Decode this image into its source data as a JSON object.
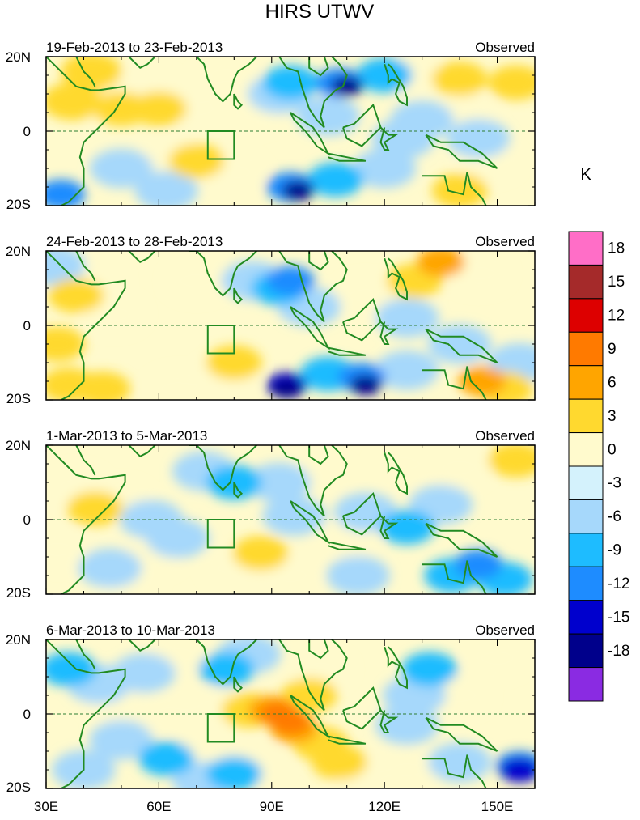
{
  "chart_data": {
    "type": "heatmap",
    "title": "HIRS UTWV",
    "colorbar": {
      "unit": "K",
      "levels": [
        18,
        15,
        12,
        9,
        6,
        3,
        0,
        -3,
        -6,
        -9,
        -12,
        -15,
        -18
      ],
      "colors": [
        "#ff6ec7",
        "#a52a2a",
        "#dd0000",
        "#ff7a00",
        "#ffa500",
        "#ffd92f",
        "#fffacd",
        "#d4f2fc",
        "#a6d8fb",
        "#1ebcff",
        "#1e8cff",
        "#0000cd",
        "#00008b",
        "#8a2be2"
      ]
    },
    "x_axis": {
      "range": [
        30,
        160
      ],
      "tick_values": [
        30,
        60,
        90,
        120,
        150
      ],
      "tick_labels": [
        "30E",
        "60E",
        "90E",
        "120E",
        "150E"
      ]
    },
    "y_axis": {
      "range": [
        -20,
        20
      ],
      "tick_values": [
        20,
        0,
        -20
      ],
      "tick_labels": [
        "20N",
        "0",
        "20S"
      ]
    },
    "box_region": {
      "lon": [
        73,
        80
      ],
      "lat": [
        -7.5,
        0
      ]
    },
    "panels": [
      {
        "period": "19-Feb-2013 to 23-Feb-2013",
        "label": "Observed",
        "features": [
          {
            "lon": 37,
            "lat": 8,
            "value": 4
          },
          {
            "lon": 42,
            "lat": 16,
            "value": 4
          },
          {
            "lon": 44,
            "lat": 8,
            "value": 3
          },
          {
            "lon": 50,
            "lat": 6,
            "value": 6
          },
          {
            "lon": 60,
            "lat": 6,
            "value": 6
          },
          {
            "lon": 57,
            "lat": 12,
            "value": 3
          },
          {
            "lon": 70,
            "lat": 6,
            "value": 3
          },
          {
            "lon": 78,
            "lat": 15,
            "value": 3
          },
          {
            "lon": 85,
            "lat": 5,
            "value": 3
          },
          {
            "lon": 70,
            "lat": -8,
            "value": 6
          },
          {
            "lon": 64,
            "lat": -6,
            "value": 3
          },
          {
            "lon": 80,
            "lat": -11,
            "value": 3
          },
          {
            "lon": 140,
            "lat": 14,
            "value": 6
          },
          {
            "lon": 155,
            "lat": 13,
            "value": 6
          },
          {
            "lon": 128,
            "lat": 15,
            "value": 3
          },
          {
            "lon": 142,
            "lat": 5,
            "value": 3
          },
          {
            "lon": 140,
            "lat": -16,
            "value": 6
          },
          {
            "lon": 148,
            "lat": -8,
            "value": 3
          },
          {
            "lon": 95,
            "lat": 13,
            "value": -6
          },
          {
            "lon": 108,
            "lat": 13,
            "value": -9
          },
          {
            "lon": 110,
            "lat": 12,
            "value": -15
          },
          {
            "lon": 120,
            "lat": 15,
            "value": -6
          },
          {
            "lon": 105,
            "lat": 4,
            "value": -3
          },
          {
            "lon": 92,
            "lat": 10,
            "value": -3
          },
          {
            "lon": 95,
            "lat": -15,
            "value": -9
          },
          {
            "lon": 97,
            "lat": -16,
            "value": -15
          },
          {
            "lon": 107,
            "lat": -13,
            "value": -6
          },
          {
            "lon": 120,
            "lat": -10,
            "value": -3
          },
          {
            "lon": 50,
            "lat": -10,
            "value": -3
          },
          {
            "lon": 34,
            "lat": -17,
            "value": -9
          },
          {
            "lon": 62,
            "lat": -16,
            "value": -3
          },
          {
            "lon": 130,
            "lat": 3,
            "value": -3
          },
          {
            "lon": 125,
            "lat": -2,
            "value": -3
          },
          {
            "lon": 145,
            "lat": -2,
            "value": -3
          }
        ]
      },
      {
        "period": "24-Feb-2013 to 28-Feb-2013",
        "label": "Observed",
        "features": [
          {
            "lon": 38,
            "lat": 8,
            "value": 6
          },
          {
            "lon": 43,
            "lat": 12,
            "value": 3
          },
          {
            "lon": 33,
            "lat": -5,
            "value": 6
          },
          {
            "lon": 48,
            "lat": 3,
            "value": 3
          },
          {
            "lon": 70,
            "lat": 12,
            "value": 3
          },
          {
            "lon": 80,
            "lat": -10,
            "value": 6
          },
          {
            "lon": 78,
            "lat": -13,
            "value": 3
          },
          {
            "lon": 65,
            "lat": -17,
            "value": 3
          },
          {
            "lon": 45,
            "lat": -17,
            "value": 6
          },
          {
            "lon": 36,
            "lat": -16,
            "value": 6
          },
          {
            "lon": 135,
            "lat": 17,
            "value": 9
          },
          {
            "lon": 128,
            "lat": 12,
            "value": 6
          },
          {
            "lon": 145,
            "lat": 14,
            "value": 3
          },
          {
            "lon": 146,
            "lat": -15,
            "value": 9
          },
          {
            "lon": 152,
            "lat": -17,
            "value": 6
          },
          {
            "lon": 115,
            "lat": 8,
            "value": 3
          },
          {
            "lon": 92,
            "lat": 10,
            "value": -6
          },
          {
            "lon": 95,
            "lat": 12,
            "value": -9
          },
          {
            "lon": 85,
            "lat": 12,
            "value": -3
          },
          {
            "lon": 100,
            "lat": 5,
            "value": -3
          },
          {
            "lon": 94,
            "lat": -16,
            "value": -12
          },
          {
            "lon": 94,
            "lat": -17,
            "value": -15
          },
          {
            "lon": 114,
            "lat": -14,
            "value": -9
          },
          {
            "lon": 115,
            "lat": -16,
            "value": -15
          },
          {
            "lon": 105,
            "lat": -13,
            "value": -6
          },
          {
            "lon": 126,
            "lat": -12,
            "value": -3
          },
          {
            "lon": 140,
            "lat": -5,
            "value": -3
          },
          {
            "lon": 156,
            "lat": -10,
            "value": -3
          },
          {
            "lon": 126,
            "lat": 2,
            "value": -3
          },
          {
            "lon": 32,
            "lat": 16,
            "value": -3
          }
        ]
      },
      {
        "period": "1-Mar-2013 to 5-Mar-2013",
        "label": "Observed",
        "features": [
          {
            "lon": 43,
            "lat": 3,
            "value": 6
          },
          {
            "lon": 38,
            "lat": 9,
            "value": 3
          },
          {
            "lon": 33,
            "lat": -8,
            "value": 3
          },
          {
            "lon": 50,
            "lat": 5,
            "value": 3
          },
          {
            "lon": 58,
            "lat": -10,
            "value": 3
          },
          {
            "lon": 87,
            "lat": -9,
            "value": 6
          },
          {
            "lon": 80,
            "lat": -13,
            "value": 3
          },
          {
            "lon": 95,
            "lat": -15,
            "value": 3
          },
          {
            "lon": 52,
            "lat": -17,
            "value": 3
          },
          {
            "lon": 125,
            "lat": 15,
            "value": 3
          },
          {
            "lon": 140,
            "lat": 14,
            "value": 3
          },
          {
            "lon": 155,
            "lat": 16,
            "value": 6
          },
          {
            "lon": 103,
            "lat": 12,
            "value": 3
          },
          {
            "lon": 110,
            "lat": -5,
            "value": 3
          },
          {
            "lon": 80,
            "lat": 10,
            "value": -6
          },
          {
            "lon": 72,
            "lat": 13,
            "value": -3
          },
          {
            "lon": 92,
            "lat": 10,
            "value": -3
          },
          {
            "lon": 96,
            "lat": 1,
            "value": -3
          },
          {
            "lon": 58,
            "lat": 0,
            "value": -3
          },
          {
            "lon": 65,
            "lat": -5,
            "value": -3
          },
          {
            "lon": 126,
            "lat": -2,
            "value": -6
          },
          {
            "lon": 135,
            "lat": 4,
            "value": -3
          },
          {
            "lon": 145,
            "lat": -12,
            "value": -9
          },
          {
            "lon": 152,
            "lat": -16,
            "value": -6
          },
          {
            "lon": 138,
            "lat": -15,
            "value": -6
          },
          {
            "lon": 115,
            "lat": 2,
            "value": -3
          },
          {
            "lon": 113,
            "lat": -15,
            "value": -3
          },
          {
            "lon": 47,
            "lat": -13,
            "value": -3
          }
        ]
      },
      {
        "period": "6-Mar-2013 to 10-Mar-2013",
        "label": "Observed",
        "features": [
          {
            "lon": 95,
            "lat": -2,
            "value": 12
          },
          {
            "lon": 92,
            "lat": 0,
            "value": 12
          },
          {
            "lon": 96,
            "lat": -4,
            "value": 9
          },
          {
            "lon": 90,
            "lat": 1,
            "value": 9
          },
          {
            "lon": 100,
            "lat": 5,
            "value": 6
          },
          {
            "lon": 103,
            "lat": -8,
            "value": 6
          },
          {
            "lon": 108,
            "lat": -13,
            "value": 6
          },
          {
            "lon": 115,
            "lat": -17,
            "value": 3
          },
          {
            "lon": 84,
            "lat": 1,
            "value": 6
          },
          {
            "lon": 75,
            "lat": 2,
            "value": 3
          },
          {
            "lon": 63,
            "lat": 0,
            "value": 3
          },
          {
            "lon": 48,
            "lat": 3,
            "value": 3
          },
          {
            "lon": 65,
            "lat": 16,
            "value": 3
          },
          {
            "lon": 103,
            "lat": 12,
            "value": 3
          },
          {
            "lon": 72,
            "lat": -11,
            "value": 3
          },
          {
            "lon": 86,
            "lat": -14,
            "value": 3
          },
          {
            "lon": 126,
            "lat": -15,
            "value": 3
          },
          {
            "lon": 140,
            "lat": 5,
            "value": 3
          },
          {
            "lon": 150,
            "lat": 15,
            "value": 3
          },
          {
            "lon": 36,
            "lat": 12,
            "value": -6
          },
          {
            "lon": 44,
            "lat": 8,
            "value": -3
          },
          {
            "lon": 56,
            "lat": 11,
            "value": -3
          },
          {
            "lon": 78,
            "lat": 12,
            "value": -6
          },
          {
            "lon": 84,
            "lat": 16,
            "value": -3
          },
          {
            "lon": 50,
            "lat": -7,
            "value": -3
          },
          {
            "lon": 62,
            "lat": -12,
            "value": -6
          },
          {
            "lon": 80,
            "lat": -16,
            "value": -6
          },
          {
            "lon": 72,
            "lat": -18,
            "value": -3
          },
          {
            "lon": 132,
            "lat": 12,
            "value": -6
          },
          {
            "lon": 128,
            "lat": 5,
            "value": -3
          },
          {
            "lon": 126,
            "lat": -3,
            "value": -3
          },
          {
            "lon": 156,
            "lat": -14,
            "value": -9
          },
          {
            "lon": 156,
            "lat": -15,
            "value": -12
          },
          {
            "lon": 140,
            "lat": -13,
            "value": -3
          },
          {
            "lon": 40,
            "lat": -15,
            "value": -3
          }
        ]
      }
    ]
  }
}
